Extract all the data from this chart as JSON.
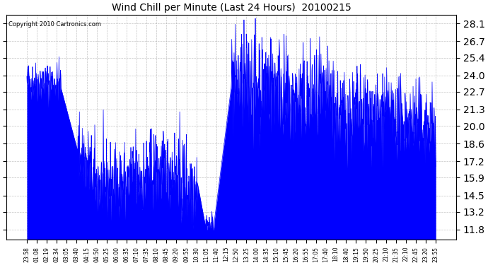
{
  "title": "Wind Chill per Minute (Last 24 Hours)  20100215",
  "copyright": "Copyright 2010 Cartronics.com",
  "line_color": "#0000FF",
  "bg_color": "#FFFFFF",
  "plot_bg_color": "#FFFFFF",
  "grid_color": "#AAAAAA",
  "yticks": [
    11.8,
    13.2,
    14.5,
    15.9,
    17.2,
    18.6,
    20.0,
    21.3,
    22.7,
    24.0,
    25.4,
    26.7,
    28.1
  ],
  "ylim": [
    11.0,
    28.8
  ],
  "xtick_labels": [
    "23:58",
    "01:08",
    "02:19",
    "02:34",
    "03:05",
    "03:40",
    "04:15",
    "04:50",
    "05:25",
    "06:00",
    "06:35",
    "07:10",
    "07:35",
    "08:10",
    "08:45",
    "09:20",
    "09:55",
    "10:30",
    "11:05",
    "11:40",
    "12:15",
    "12:50",
    "13:25",
    "14:00",
    "14:35",
    "15:10",
    "15:45",
    "16:20",
    "16:55",
    "17:05",
    "17:40",
    "18:10",
    "18:40",
    "19:15",
    "19:50",
    "20:25",
    "21:10",
    "21:35",
    "22:10",
    "22:45",
    "23:20",
    "23:55"
  ]
}
